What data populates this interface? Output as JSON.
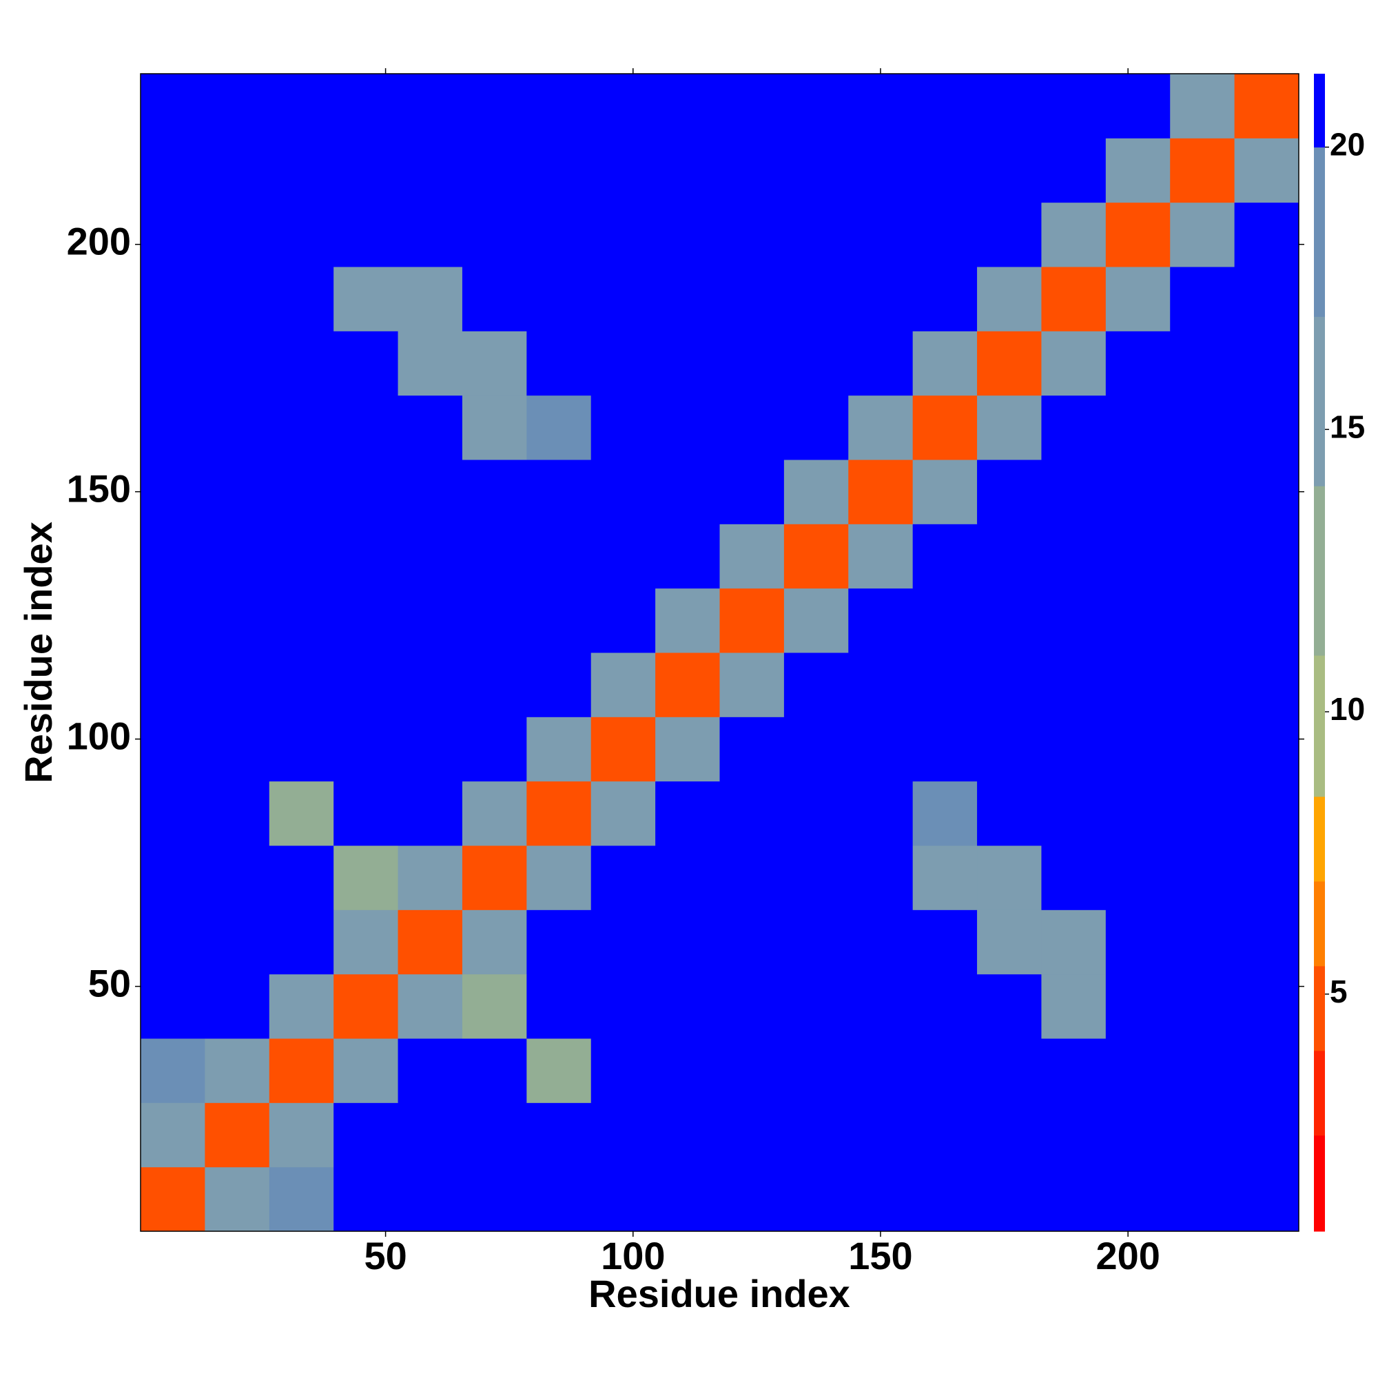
{
  "chart_data": {
    "type": "heatmap",
    "x_label": "Residue index",
    "y_label": "Residue index",
    "x_edges": [
      0.5,
      13.5,
      26.5,
      39.5,
      52.5,
      65.5,
      78.5,
      91.5,
      104.5,
      117.5,
      130.5,
      143.5,
      156.5,
      169.5,
      182.5,
      195.5,
      208.5,
      221.5,
      234.5
    ],
    "y_edges": [
      0.5,
      13.5,
      26.5,
      39.5,
      52.5,
      65.5,
      78.5,
      91.5,
      104.5,
      117.5,
      130.5,
      143.5,
      156.5,
      169.5,
      182.5,
      195.5,
      208.5,
      221.5,
      234.5
    ],
    "z": [
      [
        5,
        14,
        17,
        21,
        21,
        21,
        21,
        21,
        21,
        21,
        21,
        21,
        21,
        21,
        21,
        21,
        21,
        21
      ],
      [
        14,
        5,
        14,
        21,
        21,
        21,
        21,
        21,
        21,
        21,
        21,
        21,
        21,
        21,
        21,
        21,
        21,
        21
      ],
      [
        17,
        14,
        5,
        14,
        21,
        21,
        13,
        21,
        21,
        21,
        21,
        21,
        21,
        21,
        21,
        21,
        21,
        21
      ],
      [
        21,
        21,
        14,
        5,
        14,
        13,
        21,
        21,
        21,
        21,
        21,
        21,
        21,
        21,
        16,
        21,
        21,
        21
      ],
      [
        21,
        21,
        21,
        14,
        5,
        14,
        21,
        21,
        21,
        21,
        21,
        21,
        21,
        14,
        15,
        21,
        21,
        21
      ],
      [
        21,
        21,
        21,
        13,
        14,
        5,
        14,
        21,
        21,
        21,
        21,
        21,
        16,
        14,
        21,
        21,
        21,
        21
      ],
      [
        21,
        21,
        13,
        21,
        21,
        14,
        5,
        14,
        21,
        21,
        21,
        21,
        17,
        21,
        21,
        21,
        21,
        21
      ],
      [
        21,
        21,
        21,
        21,
        21,
        21,
        14,
        5,
        14,
        21,
        21,
        21,
        21,
        21,
        21,
        21,
        21,
        21
      ],
      [
        21,
        21,
        21,
        21,
        21,
        21,
        21,
        14,
        5,
        14,
        21,
        21,
        21,
        21,
        21,
        21,
        21,
        21
      ],
      [
        21,
        21,
        21,
        21,
        21,
        21,
        21,
        21,
        14,
        5,
        14,
        21,
        21,
        21,
        21,
        21,
        21,
        21
      ],
      [
        21,
        21,
        21,
        21,
        21,
        21,
        21,
        21,
        21,
        14,
        5,
        14,
        21,
        21,
        21,
        21,
        21,
        21
      ],
      [
        21,
        21,
        21,
        21,
        21,
        21,
        21,
        21,
        21,
        21,
        14,
        5,
        14,
        21,
        21,
        21,
        21,
        21
      ],
      [
        21,
        21,
        21,
        21,
        21,
        16,
        17,
        21,
        21,
        21,
        21,
        14,
        5,
        14,
        21,
        21,
        21,
        21
      ],
      [
        21,
        21,
        21,
        21,
        14,
        14,
        21,
        21,
        21,
        21,
        21,
        21,
        14,
        5,
        14,
        21,
        21,
        21
      ],
      [
        21,
        21,
        21,
        16,
        15,
        21,
        21,
        21,
        21,
        21,
        21,
        21,
        21,
        14,
        5,
        14,
        21,
        21
      ],
      [
        21,
        21,
        21,
        21,
        21,
        21,
        21,
        21,
        21,
        21,
        21,
        21,
        21,
        21,
        14,
        5,
        14,
        21
      ],
      [
        21,
        21,
        21,
        21,
        21,
        21,
        21,
        21,
        21,
        21,
        21,
        21,
        21,
        21,
        21,
        14,
        5,
        14
      ],
      [
        21,
        21,
        21,
        21,
        21,
        21,
        21,
        21,
        21,
        21,
        21,
        21,
        21,
        21,
        21,
        21,
        14,
        5
      ]
    ],
    "xlim": [
      0.5,
      234.5
    ],
    "ylim": [
      0.5,
      234.5
    ],
    "xticks": [
      50,
      100,
      150,
      200
    ],
    "yticks": [
      50,
      100,
      150,
      200
    ],
    "clim": [
      0.8,
      21.3
    ],
    "cticks": [
      5,
      10,
      15,
      20
    ],
    "colorscale": [
      {
        "value": 0.8,
        "color": "#ff0000"
      },
      {
        "value": 2.5,
        "color": "#ff2400"
      },
      {
        "value": 4,
        "color": "#ff5000"
      },
      {
        "value": 5.5,
        "color": "#ff7f00"
      },
      {
        "value": 7,
        "color": "#ffa500"
      },
      {
        "value": 8.5,
        "color": "#a9bc82"
      },
      {
        "value": 11,
        "color": "#93ae94"
      },
      {
        "value": 14,
        "color": "#7d9db0"
      },
      {
        "value": 17,
        "color": "#6b8fb6"
      },
      {
        "value": 20,
        "color": "#0000ff"
      }
    ]
  }
}
